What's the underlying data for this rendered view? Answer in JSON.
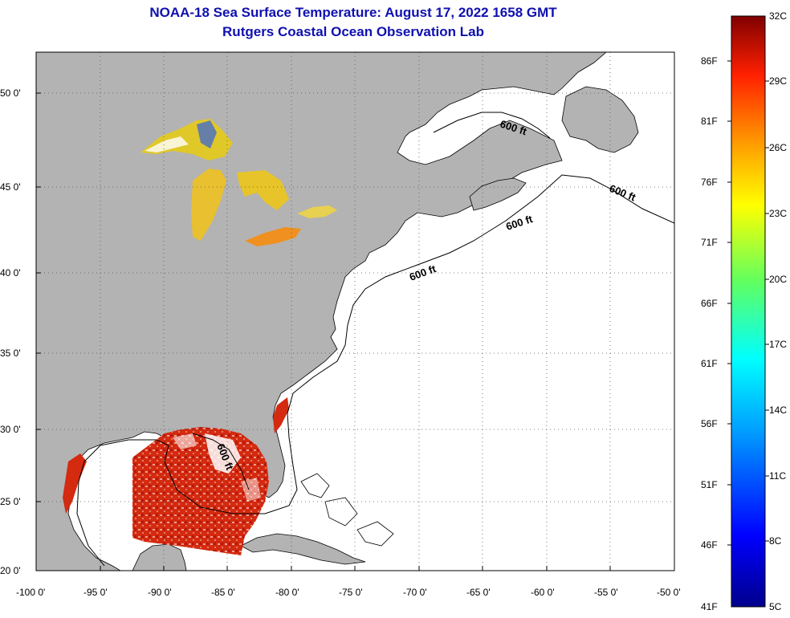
{
  "title": {
    "line1": "NOAA-18 Sea Surface Temperature:  August 17, 2022 1658 GMT",
    "line2": "Rutgers Coastal Ocean Observation Lab"
  },
  "lat_labels": [
    "50 0'",
    "45 0'",
    "40 0'",
    "35 0'",
    "30 0'",
    "25 0'",
    "20 0'"
  ],
  "lon_labels": [
    "-100 0'",
    "-95 0'",
    "-90 0'",
    "-85 0'",
    "-80 0'",
    "-75 0'",
    "-70 0'",
    "-65 0'",
    "-60 0'",
    "-55 0'",
    "-50 0'"
  ],
  "contour_label": "600 ft",
  "colorbar": {
    "fahrenheit": [
      "86F",
      "81F",
      "76F",
      "71F",
      "66F",
      "61F",
      "56F",
      "51F",
      "46F",
      "41F"
    ],
    "celsius": [
      "32C",
      "29C",
      "26C",
      "23C",
      "20C",
      "17C",
      "14C",
      "11C",
      "8C",
      "5C"
    ]
  },
  "colors": {
    "land": "#b3b3b3",
    "ocean": "#ffffff",
    "title": "#1010b0",
    "warm": "#d42a10",
    "lake": "#d8c020"
  }
}
